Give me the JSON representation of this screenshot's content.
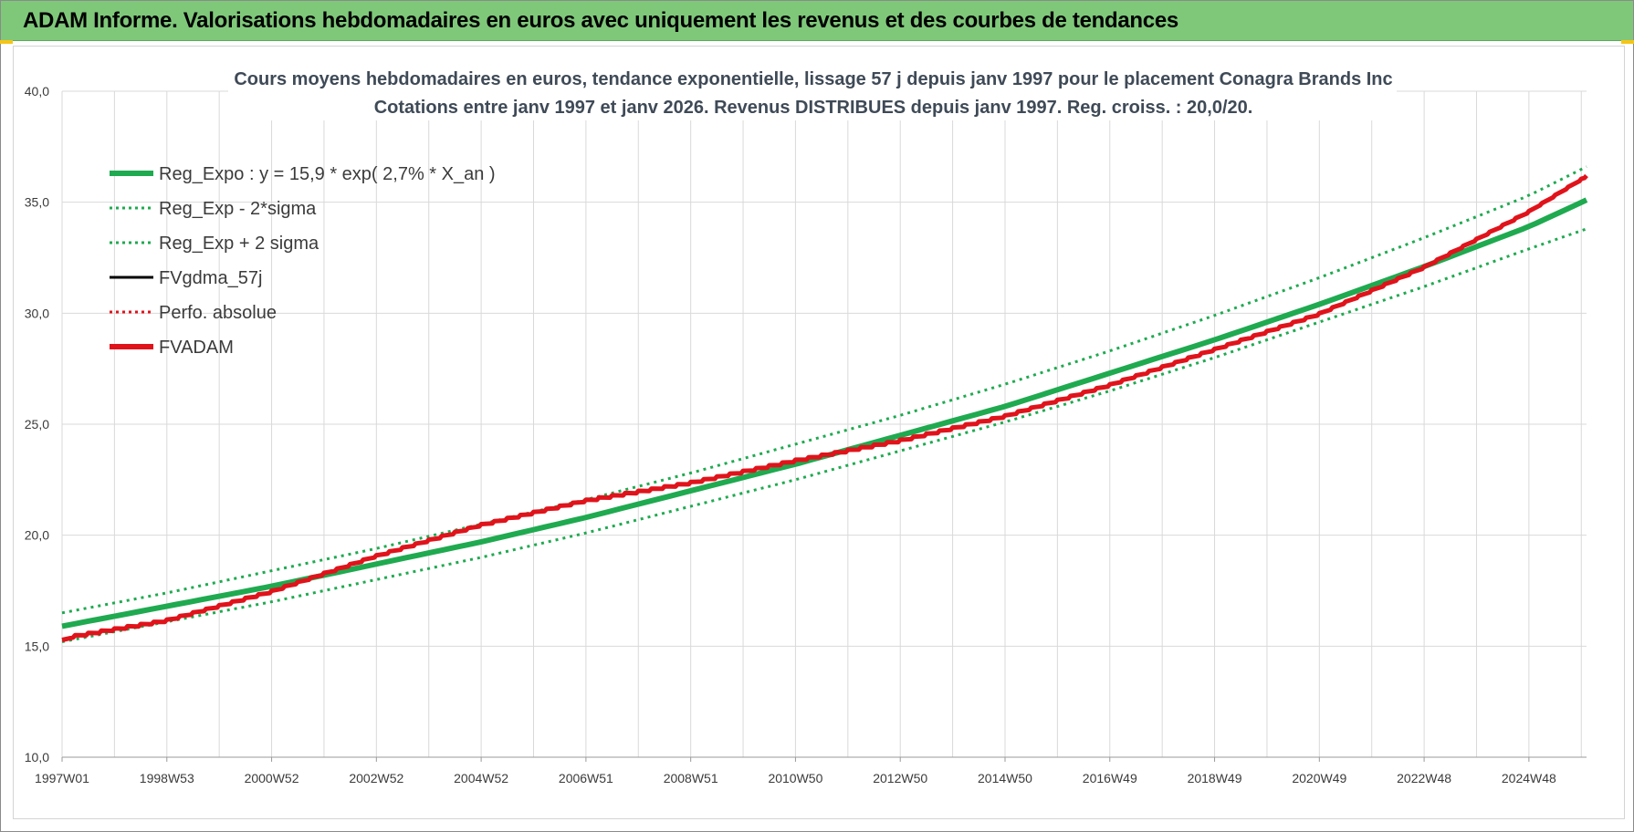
{
  "banner": {
    "title": "ADAM Informe. Valorisations hebdomadaires en euros avec uniquement les revenus et des courbes de tendances"
  },
  "colors": {
    "banner_bg": "#7fc87a",
    "reg_expo": "#1faa50",
    "fvadam": "#e0131b",
    "black": "#000000",
    "grid": "#d9d9d9"
  },
  "chart_data": {
    "type": "line",
    "title": [
      "Cours moyens hebdomadaires en euros, tendance exponentielle, lissage 57 j depuis janv 1997 pour le placement Conagra Brands Inc",
      "Cotations entre janv 1997 et janv 2026. Revenus DISTRIBUES depuis janv 1997. Reg. croiss. : 20,0/20."
    ],
    "xlabel": "",
    "ylabel": "",
    "ylim": [
      10,
      40
    ],
    "xlim": [
      1997.0,
      2026.1
    ],
    "y_ticks": [
      "10,0",
      "15,0",
      "20,0",
      "25,0",
      "30,0",
      "35,0",
      "40,0"
    ],
    "x_tick_labels": [
      "1997W01",
      "1998W53",
      "2000W52",
      "2002W52",
      "2004W52",
      "2006W51",
      "2008W51",
      "2010W50",
      "2012W50",
      "2014W50",
      "2016W49",
      "2018W49",
      "2020W49",
      "2022W48",
      "2024W48"
    ],
    "x_tick_positions": [
      1997.0,
      1999.0,
      2001.0,
      2003.0,
      2005.0,
      2007.0,
      2009.0,
      2011.0,
      2013.0,
      2015.0,
      2017.0,
      2019.0,
      2021.0,
      2023.0,
      2025.0
    ],
    "grid": true,
    "legend_position": "top-left",
    "legend": [
      {
        "label": "Reg_Expo : y = 15,9 * exp( 2,7% *  X_an )",
        "color": "#1faa50",
        "style": "solid-thick"
      },
      {
        "label": "Reg_Exp - 2*sigma",
        "color": "#1faa50",
        "style": "dotted"
      },
      {
        "label": "Reg_Exp + 2 sigma",
        "color": "#1faa50",
        "style": "dotted"
      },
      {
        "label": "FVgdma_57j",
        "color": "#000000",
        "style": "solid"
      },
      {
        "label": "Perfo. absolue",
        "color": "#e0131b",
        "style": "dotted"
      },
      {
        "label": "FVADAM",
        "color": "#e0131b",
        "style": "solid-thick"
      }
    ],
    "series": [
      {
        "name": "Reg_Expo : y = 15,9 * exp( 2,7% *  X_an )",
        "x": [
          1997.0,
          1999.0,
          2001.0,
          2003.0,
          2005.0,
          2007.0,
          2009.0,
          2011.0,
          2013.0,
          2015.0,
          2017.0,
          2019.0,
          2021.0,
          2023.0,
          2025.0,
          2026.1
        ],
        "values": [
          15.9,
          16.8,
          17.7,
          18.7,
          19.7,
          20.8,
          22.0,
          23.2,
          24.5,
          25.8,
          27.3,
          28.8,
          30.4,
          32.1,
          33.9,
          35.1
        ]
      },
      {
        "name": "Reg_Exp - 2*sigma",
        "x": [
          1997.0,
          1999.0,
          2001.0,
          2003.0,
          2005.0,
          2007.0,
          2009.0,
          2011.0,
          2013.0,
          2015.0,
          2017.0,
          2019.0,
          2021.0,
          2023.0,
          2025.0,
          2026.1
        ],
        "values": [
          15.2,
          16.1,
          17.0,
          18.0,
          19.0,
          20.1,
          21.3,
          22.5,
          23.8,
          25.1,
          26.5,
          28.0,
          29.6,
          31.2,
          32.9,
          33.8
        ]
      },
      {
        "name": "Reg_Exp + 2 sigma",
        "x": [
          1997.0,
          1999.0,
          2001.0,
          2003.0,
          2005.0,
          2007.0,
          2009.0,
          2011.0,
          2013.0,
          2015.0,
          2017.0,
          2019.0,
          2021.0,
          2023.0,
          2025.0,
          2026.1
        ],
        "values": [
          16.5,
          17.4,
          18.4,
          19.4,
          20.5,
          21.6,
          22.8,
          24.1,
          25.4,
          26.8,
          28.3,
          29.9,
          31.6,
          33.4,
          35.3,
          36.6
        ]
      },
      {
        "name": "FVADAM",
        "x": [
          1997.0,
          1999.0,
          2001.0,
          2003.0,
          2005.0,
          2007.0,
          2009.0,
          2011.0,
          2013.0,
          2015.0,
          2017.0,
          2019.0,
          2021.0,
          2023.0,
          2025.0,
          2026.1
        ],
        "values": [
          15.4,
          16.2,
          17.5,
          19.1,
          20.5,
          21.6,
          22.4,
          23.4,
          24.3,
          25.4,
          26.8,
          28.4,
          30.0,
          32.1,
          34.6,
          36.2
        ]
      }
    ]
  }
}
